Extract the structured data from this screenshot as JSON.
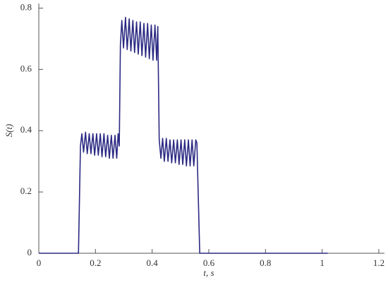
{
  "chart_data": {
    "type": "line",
    "xlabel": "t, s",
    "ylabel": "S(t)",
    "xlim": [
      0,
      1.22
    ],
    "ylim": [
      0,
      0.815
    ],
    "xticks": [
      0,
      0.2,
      0.4,
      0.6,
      0.8,
      1,
      1.2
    ],
    "yticks": [
      0,
      0.2,
      0.4,
      0.6,
      0.8
    ],
    "series": [
      {
        "color": "#2b2a83",
        "x": [
          0,
          0.14,
          0.147,
          0.152,
          0.158,
          0.165,
          0.171,
          0.178,
          0.184,
          0.191,
          0.197,
          0.204,
          0.21,
          0.217,
          0.223,
          0.23,
          0.236,
          0.243,
          0.249,
          0.256,
          0.262,
          0.269,
          0.275,
          0.28,
          0.284,
          0.288,
          0.293,
          0.299,
          0.306,
          0.312,
          0.319,
          0.325,
          0.332,
          0.338,
          0.345,
          0.351,
          0.358,
          0.364,
          0.371,
          0.377,
          0.384,
          0.39,
          0.397,
          0.403,
          0.41,
          0.416,
          0.42,
          0.425,
          0.431,
          0.437,
          0.443,
          0.45,
          0.456,
          0.463,
          0.469,
          0.476,
          0.482,
          0.489,
          0.495,
          0.502,
          0.508,
          0.515,
          0.521,
          0.528,
          0.534,
          0.541,
          0.547,
          0.554,
          0.558,
          0.568,
          1.02
        ],
        "values": [
          0,
          0,
          0.35,
          0.39,
          0.33,
          0.395,
          0.325,
          0.39,
          0.325,
          0.39,
          0.32,
          0.39,
          0.32,
          0.39,
          0.315,
          0.39,
          0.315,
          0.385,
          0.31,
          0.385,
          0.31,
          0.385,
          0.31,
          0.39,
          0.35,
          0.68,
          0.76,
          0.67,
          0.77,
          0.665,
          0.765,
          0.66,
          0.76,
          0.655,
          0.755,
          0.65,
          0.755,
          0.645,
          0.75,
          0.64,
          0.75,
          0.635,
          0.745,
          0.63,
          0.745,
          0.63,
          0.74,
          0.37,
          0.31,
          0.375,
          0.3,
          0.375,
          0.3,
          0.37,
          0.295,
          0.37,
          0.295,
          0.37,
          0.29,
          0.37,
          0.29,
          0.37,
          0.285,
          0.37,
          0.285,
          0.37,
          0.285,
          0.37,
          0.36,
          0,
          0
        ]
      }
    ]
  }
}
